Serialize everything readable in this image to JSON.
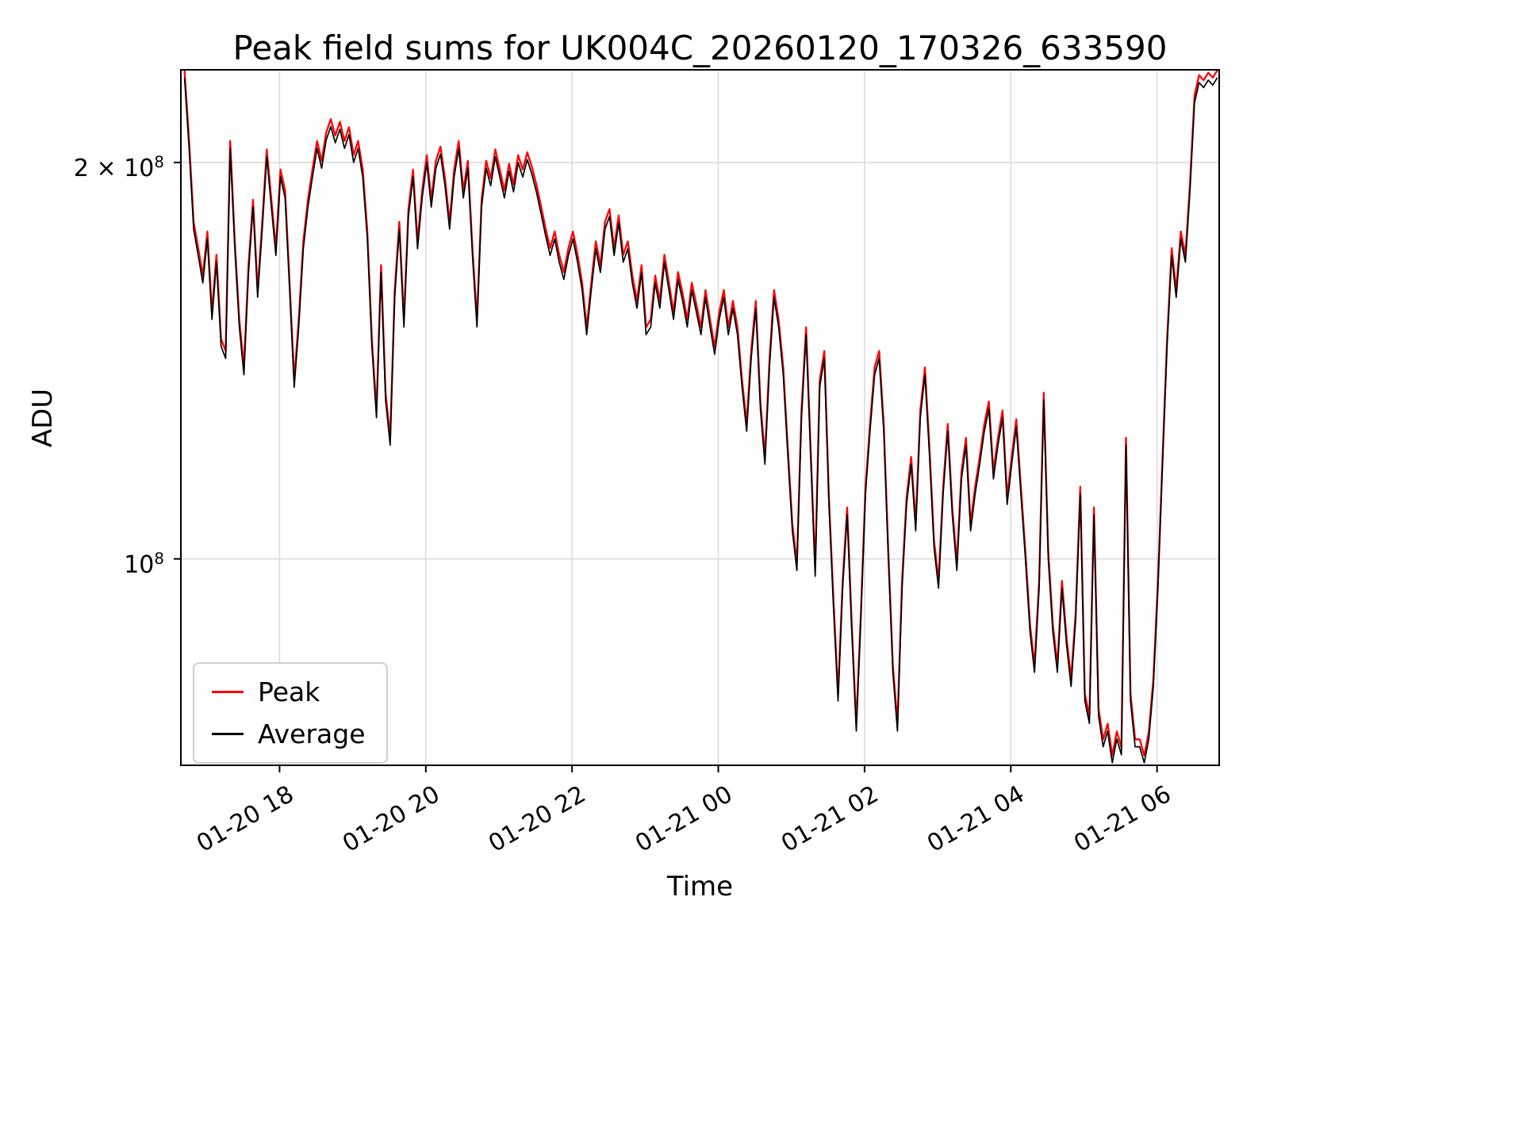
{
  "chart_data": {
    "type": "line",
    "title": "Peak field sums for UK004C_20260120_170326_633590",
    "xlabel": "Time",
    "ylabel": "ADU",
    "yscale": "log",
    "grid": true,
    "grid_color": "#dcdcdc",
    "legend_position": "lower left",
    "ylim": [
      69700000,
      235200000
    ],
    "xlim_hours": [
      16.65,
      30.85
    ],
    "x_note": "x expressed as hours since 2026-01-20 00:00; ticks every 2 hours",
    "x_start_hour": 16.7,
    "x_step_hours": 0.0625,
    "value_unit": 1000000,
    "peak_ratio": 1.013,
    "xticks": [
      {
        "hour": 18,
        "label": "01-20 18"
      },
      {
        "hour": 20,
        "label": "01-20 20"
      },
      {
        "hour": 22,
        "label": "01-20 22"
      },
      {
        "hour": 24,
        "label": "01-21 00"
      },
      {
        "hour": 26,
        "label": "01-21 02"
      },
      {
        "hour": 28,
        "label": "01-21 04"
      },
      {
        "hour": 30,
        "label": "01-21 06"
      }
    ],
    "yticks": [
      {
        "value": 200000000,
        "base": "2 × 10",
        "exp": "8"
      },
      {
        "value": 100000000,
        "base": "10",
        "exp": "8"
      }
    ],
    "series": [
      {
        "name": "Peak",
        "color": "#ff0000",
        "derived": "Average values multiplied by peak_ratio; the two curves overlap almost exactly, red visible only at spike tips"
      },
      {
        "name": "Average",
        "color": "#000000",
        "values_e6": [
          232,
          205,
          178,
          170,
          162,
          175,
          152,
          168,
          145,
          142,
          205,
          172,
          150,
          138,
          165,
          185,
          158,
          178,
          202,
          185,
          170,
          195,
          188,
          160,
          135,
          150,
          172,
          185,
          195,
          205,
          198,
          208,
          213,
          207,
          212,
          205,
          210,
          200,
          205,
          195,
          175,
          145,
          128,
          165,
          132,
          122,
          158,
          178,
          150,
          182,
          195,
          172,
          188,
          200,
          185,
          198,
          203,
          192,
          178,
          195,
          205,
          188,
          198,
          170,
          150,
          185,
          198,
          192,
          202,
          195,
          188,
          197,
          190,
          200,
          195,
          201,
          196,
          190,
          183,
          176,
          170,
          175,
          168,
          163,
          170,
          175,
          168,
          160,
          148,
          160,
          172,
          165,
          178,
          182,
          170,
          180,
          168,
          172,
          162,
          155,
          165,
          148,
          150,
          162,
          155,
          168,
          160,
          152,
          163,
          157,
          150,
          160,
          154,
          148,
          158,
          150,
          143,
          152,
          158,
          148,
          155,
          148,
          135,
          125,
          142,
          155,
          130,
          118,
          140,
          158,
          150,
          138,
          120,
          105,
          98,
          128,
          148,
          120,
          97,
          135,
          142,
          110,
          92,
          78,
          95,
          108,
          88,
          74,
          90,
          112,
          125,
          138,
          142,
          125,
          100,
          82,
          74,
          95,
          110,
          118,
          105,
          128,
          138,
          120,
          102,
          95,
          112,
          125,
          108,
          98,
          115,
          122,
          105,
          112,
          118,
          125,
          130,
          115,
          122,
          128,
          110,
          118,
          126,
          112,
          100,
          88,
          82,
          95,
          132,
          100,
          88,
          82,
          95,
          86,
          80,
          90,
          112,
          78,
          75,
          108,
          76,
          72,
          74,
          70,
          73,
          71,
          122,
          78,
          72,
          72,
          70,
          73,
          80,
          95,
          118,
          145,
          170,
          158,
          175,
          168,
          190,
          222,
          230,
          228,
          231,
          229,
          232
        ]
      }
    ]
  }
}
